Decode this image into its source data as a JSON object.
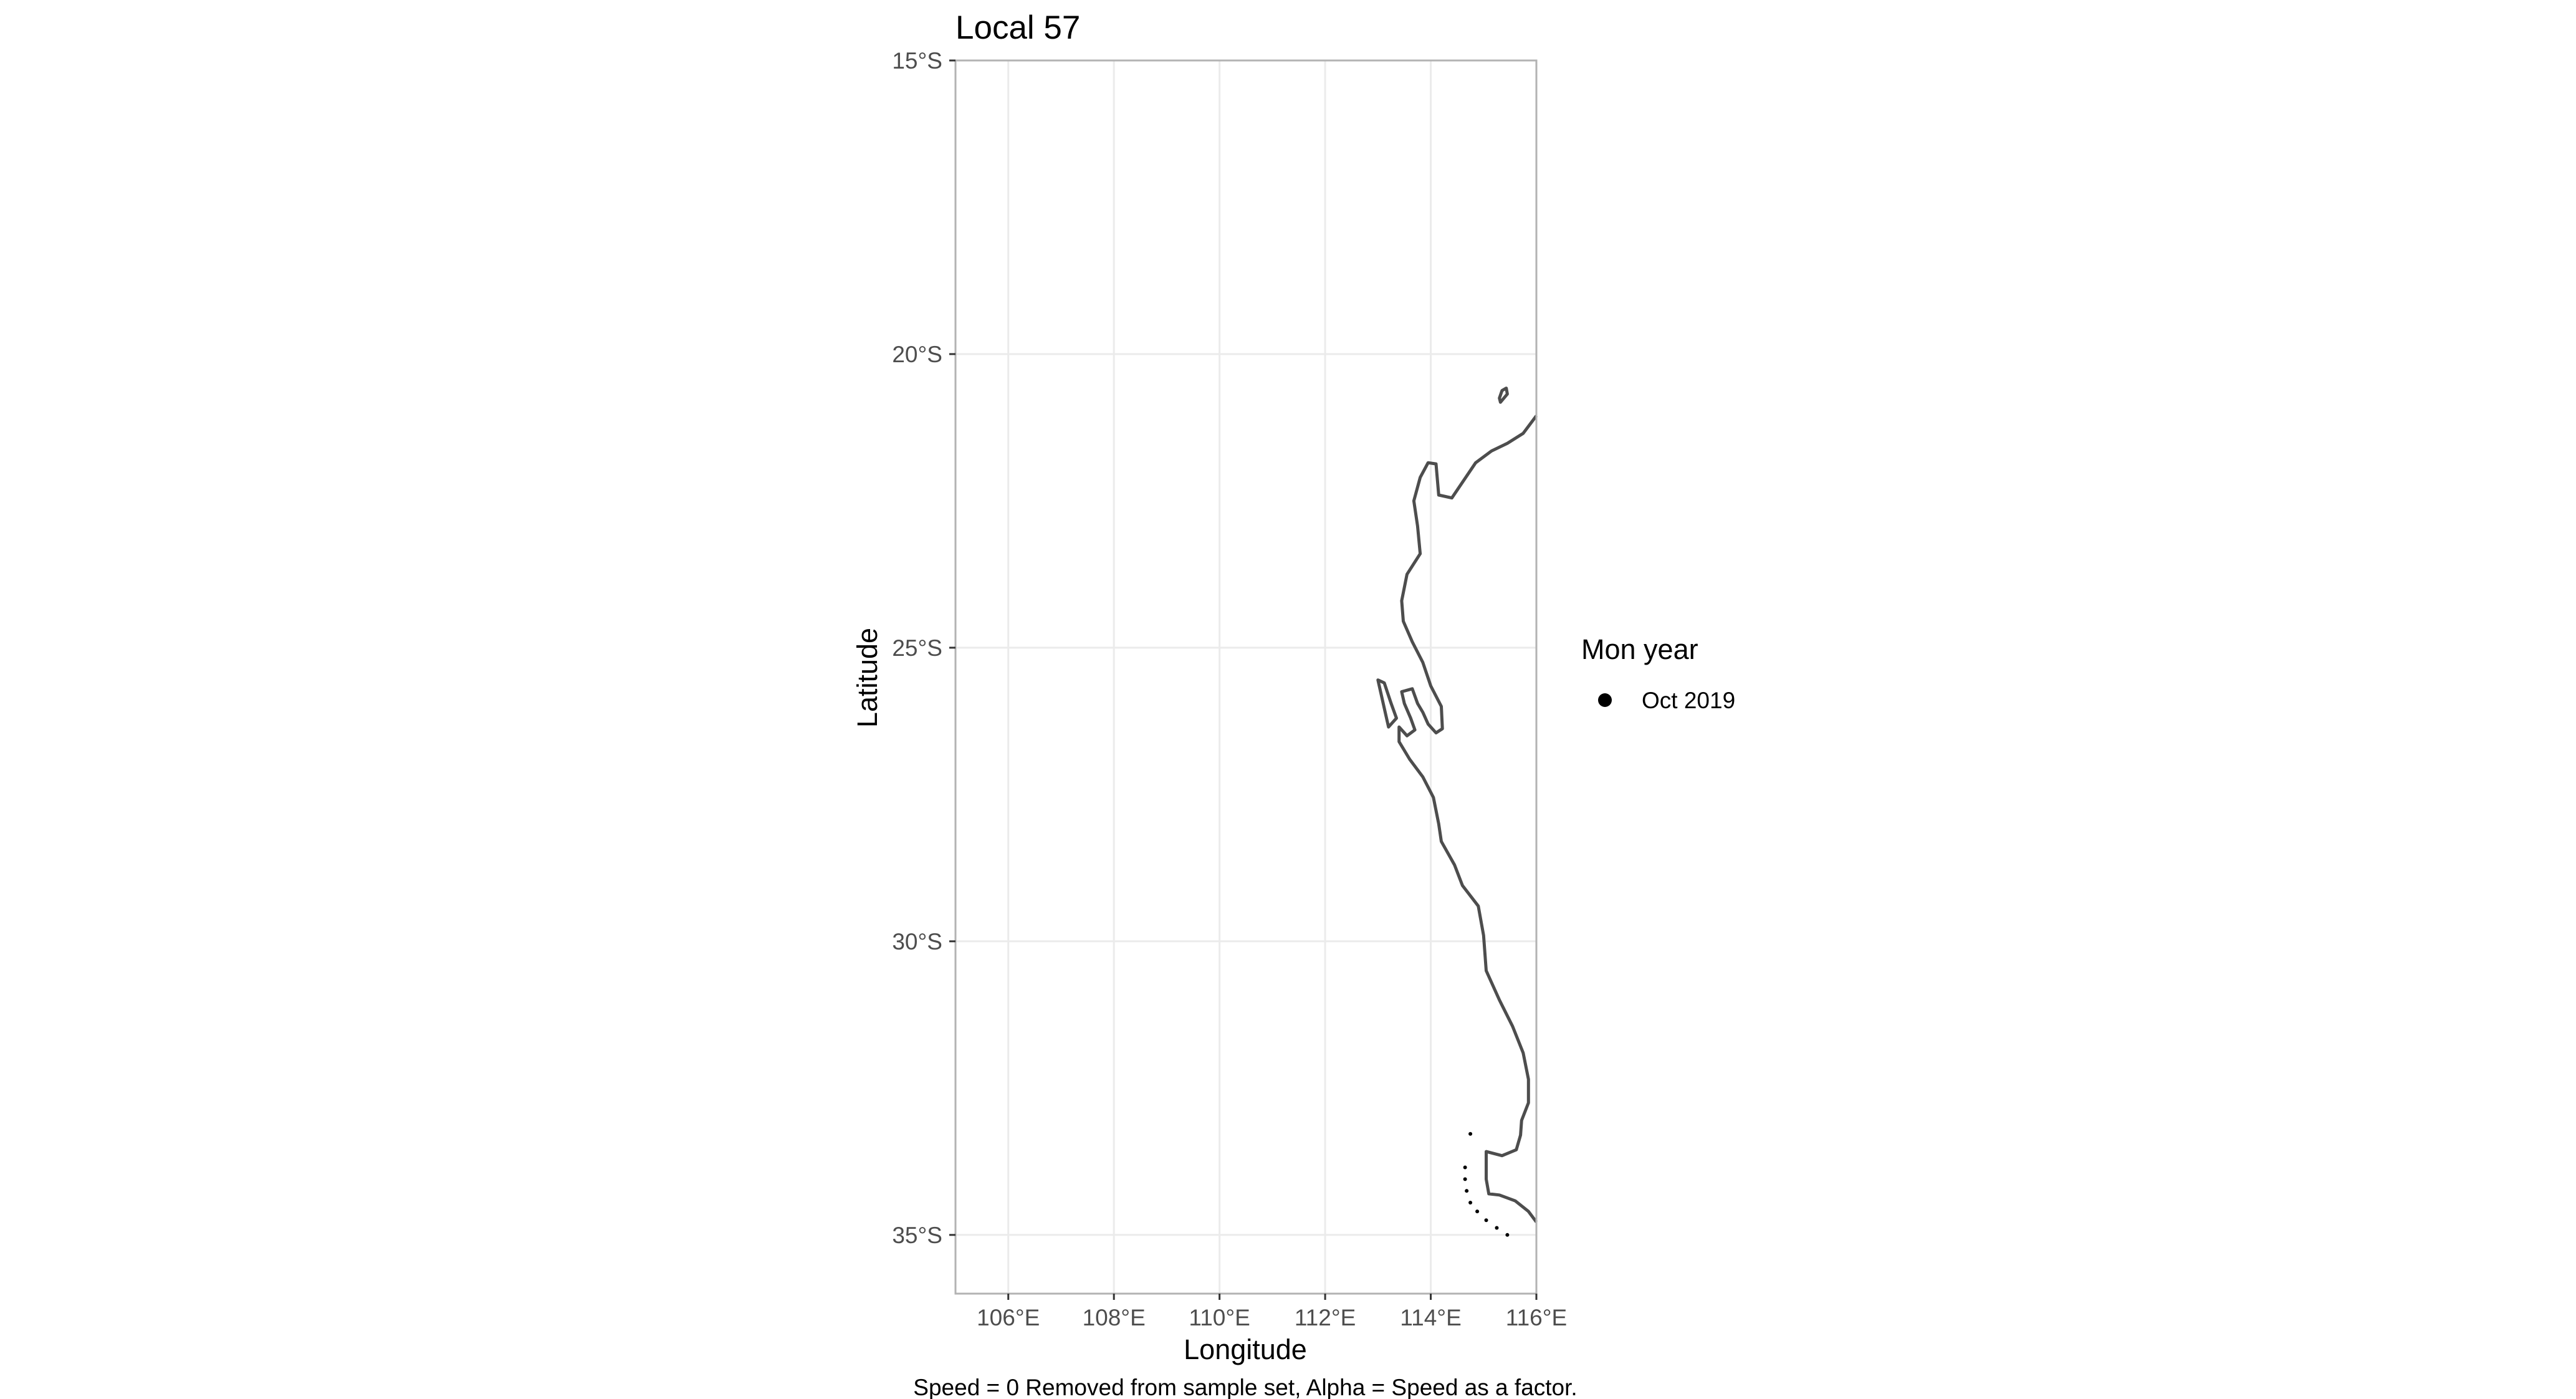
{
  "chart_data": {
    "type": "scatter",
    "title": "Local 57",
    "xlabel": "Longitude",
    "ylabel": "Latitude",
    "caption": "Speed = 0 Removed from sample set, Alpha = Speed as a factor.",
    "xlim": [
      105,
      116
    ],
    "ylim": [
      -36,
      -15
    ],
    "x_ticks": [
      106,
      108,
      110,
      112,
      114,
      116
    ],
    "x_tick_labels": [
      "106°E",
      "108°E",
      "110°E",
      "112°E",
      "114°E",
      "116°E"
    ],
    "y_ticks": [
      -15,
      -20,
      -25,
      -30,
      -35
    ],
    "y_tick_labels": [
      "15°S",
      "20°S",
      "25°S",
      "30°S",
      "35°S"
    ],
    "grid": true,
    "legend": {
      "title": "Mon year",
      "position": "right",
      "entries": [
        {
          "label": "Oct 2019",
          "color": "#000000"
        }
      ]
    },
    "colors": {
      "coastline": "#4d4d4d",
      "grid": "#ebebeb",
      "panel_border": "#b3b3b3",
      "points": "#000000"
    },
    "series": [
      {
        "name": "Oct 2019",
        "points": [
          {
            "lon": 114.75,
            "lat": -33.28
          },
          {
            "lon": 114.65,
            "lat": -33.85
          },
          {
            "lon": 114.65,
            "lat": -34.05
          },
          {
            "lon": 114.68,
            "lat": -34.25
          },
          {
            "lon": 114.75,
            "lat": -34.45
          },
          {
            "lon": 114.88,
            "lat": -34.6
          },
          {
            "lon": 115.05,
            "lat": -34.75
          },
          {
            "lon": 115.25,
            "lat": -34.88
          },
          {
            "lon": 115.45,
            "lat": -35.0
          }
        ]
      }
    ],
    "coastline": {
      "mainland": [
        [
          116.0,
          -21.05
        ],
        [
          115.75,
          -21.35
        ],
        [
          115.45,
          -21.52
        ],
        [
          115.15,
          -21.65
        ],
        [
          114.85,
          -21.85
        ],
        [
          114.4,
          -22.45
        ],
        [
          114.15,
          -22.4
        ],
        [
          114.1,
          -21.87
        ],
        [
          113.95,
          -21.85
        ],
        [
          113.8,
          -22.1
        ],
        [
          113.68,
          -22.5
        ],
        [
          113.75,
          -22.93
        ],
        [
          113.8,
          -23.4
        ],
        [
          113.55,
          -23.75
        ],
        [
          113.45,
          -24.2
        ],
        [
          113.48,
          -24.55
        ],
        [
          113.65,
          -24.9
        ],
        [
          113.85,
          -25.25
        ],
        [
          114.0,
          -25.65
        ],
        [
          114.2,
          -26.0
        ],
        [
          114.22,
          -26.38
        ],
        [
          114.1,
          -26.45
        ],
        [
          113.95,
          -26.3
        ],
        [
          113.85,
          -26.1
        ],
        [
          113.75,
          -25.95
        ],
        [
          113.65,
          -25.7
        ],
        [
          113.45,
          -25.75
        ],
        [
          113.5,
          -25.95
        ],
        [
          113.62,
          -26.2
        ],
        [
          113.7,
          -26.4
        ],
        [
          113.55,
          -26.5
        ],
        [
          113.4,
          -26.35
        ],
        [
          113.4,
          -26.6
        ],
        [
          113.6,
          -26.9
        ],
        [
          113.85,
          -27.2
        ],
        [
          114.05,
          -27.55
        ],
        [
          114.15,
          -28.0
        ],
        [
          114.2,
          -28.3
        ],
        [
          114.45,
          -28.7
        ],
        [
          114.6,
          -29.05
        ],
        [
          114.9,
          -29.4
        ],
        [
          115.0,
          -29.9
        ],
        [
          115.05,
          -30.5
        ],
        [
          115.3,
          -31.0
        ],
        [
          115.55,
          -31.45
        ],
        [
          115.75,
          -31.9
        ],
        [
          115.85,
          -32.35
        ],
        [
          115.85,
          -32.75
        ],
        [
          115.72,
          -33.05
        ],
        [
          115.7,
          -33.3
        ],
        [
          115.62,
          -33.55
        ],
        [
          115.35,
          -33.65
        ],
        [
          115.05,
          -33.58
        ],
        [
          115.05,
          -34.05
        ],
        [
          115.1,
          -34.3
        ],
        [
          115.3,
          -34.32
        ],
        [
          115.6,
          -34.42
        ],
        [
          115.85,
          -34.6
        ],
        [
          116.0,
          -34.78
        ]
      ],
      "peninsula": [
        [
          113.15,
          -26.15
        ],
        [
          113.0,
          -25.55
        ],
        [
          113.12,
          -25.6
        ],
        [
          113.25,
          -25.95
        ],
        [
          113.35,
          -26.2
        ],
        [
          113.2,
          -26.35
        ],
        [
          113.15,
          -26.15
        ]
      ],
      "island": [
        [
          115.3,
          -20.75
        ],
        [
          115.35,
          -20.62
        ],
        [
          115.43,
          -20.58
        ],
        [
          115.45,
          -20.68
        ],
        [
          115.32,
          -20.82
        ],
        [
          115.3,
          -20.75
        ]
      ]
    }
  }
}
